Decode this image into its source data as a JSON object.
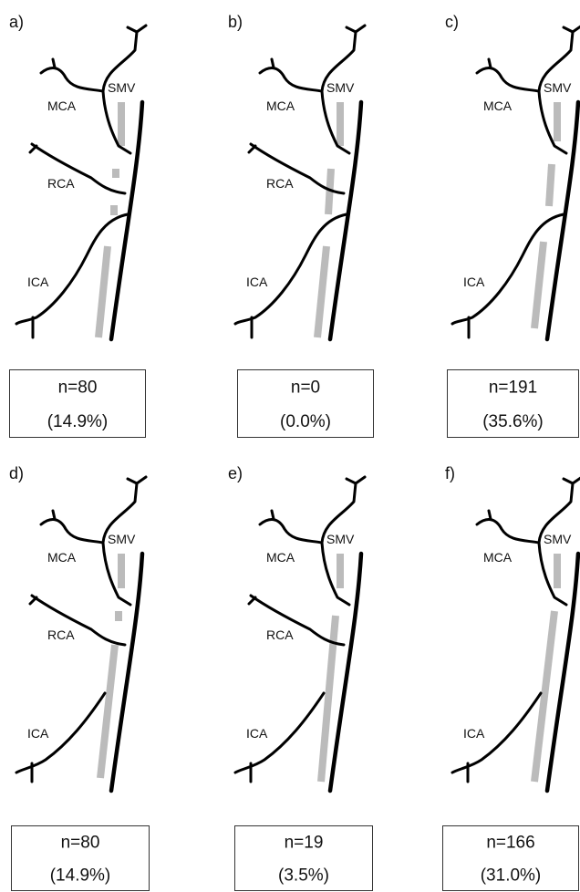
{
  "panels": [
    {
      "letter": "a)",
      "labels": {
        "mca": "MCA",
        "smv": "SMV",
        "rca": "RCA",
        "ica": "ICA"
      },
      "count": "n=80",
      "percent": "(14.9%)"
    },
    {
      "letter": "b)",
      "labels": {
        "mca": "MCA",
        "smv": "SMV",
        "rca": "RCA",
        "ica": "ICA"
      },
      "count": "n=0",
      "percent": "(0.0%)"
    },
    {
      "letter": "c)",
      "labels": {
        "mca": "MCA",
        "smv": "SMV",
        "ica": "ICA"
      },
      "count": "n=191",
      "percent": "(35.6%)"
    },
    {
      "letter": "d)",
      "labels": {
        "mca": "MCA",
        "smv": "SMV",
        "rca": "RCA",
        "ica": "ICA"
      },
      "count": "n=80",
      "percent": "(14.9%)"
    },
    {
      "letter": "e)",
      "labels": {
        "mca": "MCA",
        "smv": "SMV",
        "rca": "RCA",
        "ica": "ICA"
      },
      "count": "n=19",
      "percent": "(3.5%)"
    },
    {
      "letter": "f)",
      "labels": {
        "mca": "MCA",
        "smv": "SMV",
        "ica": "ICA"
      },
      "count": "n=166",
      "percent": "(31.0%)"
    }
  ]
}
